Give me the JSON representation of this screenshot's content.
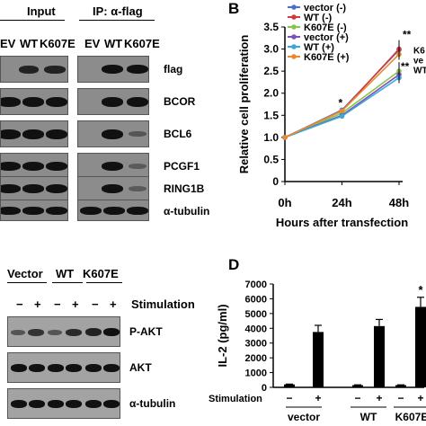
{
  "panel_a": {
    "input_label": "Input",
    "ip_label": "IP: α-flag",
    "lanes_input": [
      "EV",
      "WT",
      "K607E"
    ],
    "lanes_ip": [
      "EV",
      "WT",
      "K607E"
    ],
    "blots": [
      "flag",
      "BCOR",
      "BCL6",
      "PCGF1",
      "RING1B",
      "α-tubulin"
    ]
  },
  "panel_b": {
    "letter": "B",
    "chart_data": {
      "type": "line",
      "x": [
        "0h",
        "24h",
        "48h"
      ],
      "xlabel": "Hours after transfection",
      "ylabel": "Relative cell proliferation",
      "ylim": [
        0,
        3.5
      ],
      "yticks": [
        "0",
        "0.5",
        "1.0",
        "1.5",
        "2.0",
        "2.5",
        "3.0",
        "3.5"
      ],
      "series": [
        {
          "name": "vector (-)",
          "color": "#4a6fd1",
          "values": [
            1.0,
            1.62,
            2.98
          ]
        },
        {
          "name": "WT (-)",
          "color": "#d23c3c",
          "values": [
            1.0,
            1.6,
            3.0
          ]
        },
        {
          "name": "K607E (-)",
          "color": "#8ac34a",
          "values": [
            1.0,
            1.55,
            2.5
          ]
        },
        {
          "name": "vector (+)",
          "color": "#7a52b8",
          "values": [
            1.0,
            1.5,
            2.42
          ]
        },
        {
          "name": "WT (+)",
          "color": "#3aa7d6",
          "values": [
            1.0,
            1.48,
            2.35
          ]
        },
        {
          "name": "K607E (+)",
          "color": "#e88a2e",
          "values": [
            1.0,
            1.6,
            2.88
          ]
        }
      ],
      "annotations": [
        "**",
        "**",
        "*"
      ],
      "right_labels": [
        "K6",
        "ve",
        "WT"
      ]
    }
  },
  "panel_c": {
    "groups": [
      "Vector",
      "WT",
      "K607E"
    ],
    "signs": [
      "−",
      "+",
      "−",
      "+",
      "−",
      "+"
    ],
    "stimulation_label": "Stimulation",
    "blots": [
      "P-AKT",
      "AKT",
      "α-tubulin"
    ]
  },
  "panel_d": {
    "letter": "D",
    "chart_data": {
      "type": "bar",
      "categories": [
        "vector −",
        "vector +",
        "WT −",
        "WT +",
        "K607E −",
        "K607E +"
      ],
      "values": [
        200,
        3750,
        150,
        4150,
        150,
        5450
      ],
      "errors": [
        20,
        450,
        20,
        450,
        20,
        650
      ],
      "ylabel": "IL-2 (pg/ml)",
      "ylim": [
        0,
        7000
      ],
      "yticks": [
        "0",
        "1000",
        "2000",
        "3000",
        "4000",
        "5000",
        "6000",
        "7000"
      ],
      "group_labels": [
        "vector",
        "WT",
        "K607E"
      ],
      "signs": [
        "−",
        "+",
        "−",
        "+",
        "−",
        "+"
      ],
      "stimulation_label": "Stimulation",
      "annotation": "*"
    }
  }
}
